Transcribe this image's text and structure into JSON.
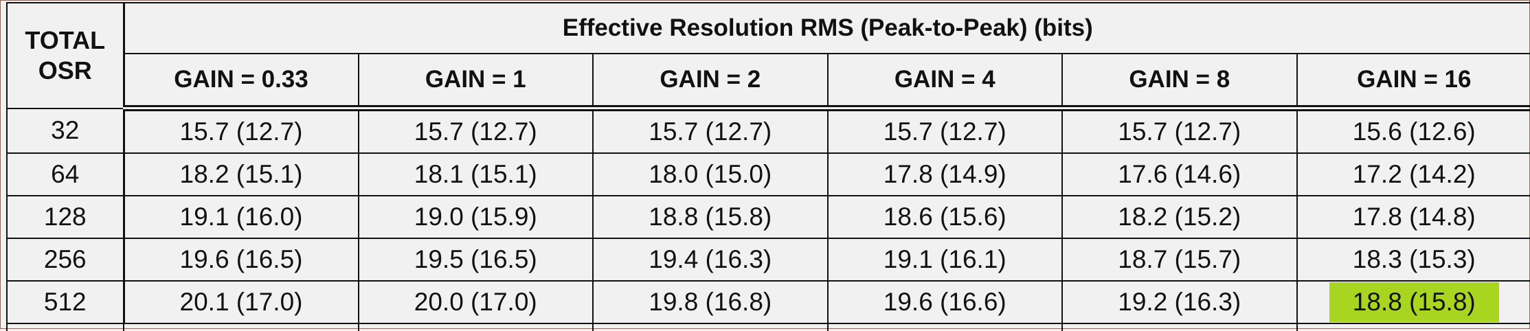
{
  "table": {
    "corner_header": [
      "TOTAL",
      "OSR"
    ],
    "group_header": "Effective Resolution RMS (Peak-to-Peak) (bits)",
    "gain_headers": [
      "GAIN = 0.33",
      "GAIN = 1",
      "GAIN = 2",
      "GAIN = 4",
      "GAIN = 8",
      "GAIN = 16"
    ],
    "rows": [
      {
        "osr": "32",
        "cells": [
          "15.7 (12.7)",
          "15.7 (12.7)",
          "15.7 (12.7)",
          "15.7 (12.7)",
          "15.7 (12.7)",
          "15.6 (12.6)"
        ]
      },
      {
        "osr": "64",
        "cells": [
          "18.2 (15.1)",
          "18.1 (15.1)",
          "18.0 (15.0)",
          "17.8 (14.9)",
          "17.6 (14.6)",
          "17.2 (14.2)"
        ]
      },
      {
        "osr": "128",
        "cells": [
          "19.1 (16.0)",
          "19.0 (15.9)",
          "18.8 (15.8)",
          "18.6 (15.6)",
          "18.2 (15.2)",
          "17.8 (14.8)"
        ]
      },
      {
        "osr": "256",
        "cells": [
          "19.6 (16.5)",
          "19.5 (16.5)",
          "19.4 (16.3)",
          "19.1 (16.1)",
          "18.7 (15.7)",
          "18.3 (15.3)"
        ]
      },
      {
        "osr": "512",
        "cells": [
          "20.1 (17.0)",
          "20.0 (17.0)",
          "19.8 (16.8)",
          "19.6 (16.6)",
          "19.2 (16.3)",
          "18.8 (15.8)"
        ]
      }
    ],
    "highlight_color": "#a8d51f"
  }
}
